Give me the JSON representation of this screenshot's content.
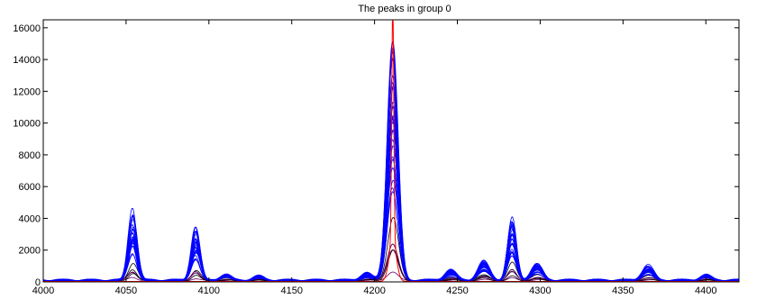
{
  "chart_data": {
    "type": "line",
    "title": "The peaks in group 0",
    "xlabel": "",
    "ylabel": "",
    "xlim": [
      4000,
      4420
    ],
    "ylim": [
      0,
      16500
    ],
    "xticks": [
      4000,
      4050,
      4100,
      4150,
      4200,
      4250,
      4300,
      4350,
      4400
    ],
    "yticks": [
      0,
      2000,
      4000,
      6000,
      8000,
      10000,
      12000,
      14000,
      16000
    ],
    "grid": false,
    "legend": "none",
    "colors": {
      "blue": "#0000ff",
      "red": "#ff0000",
      "black": "#000000",
      "purple": "#6a006a"
    },
    "peaks": [
      {
        "center": 4054,
        "height": 3700
      },
      {
        "center": 4092,
        "height": 3000
      },
      {
        "center": 4110,
        "height": 350
      },
      {
        "center": 4130,
        "height": 250
      },
      {
        "center": 4195,
        "height": 400
      },
      {
        "center": 4211,
        "height": 12600
      },
      {
        "center": 4246,
        "height": 600
      },
      {
        "center": 4266,
        "height": 1100
      },
      {
        "center": 4283,
        "height": 3300
      },
      {
        "center": 4298,
        "height": 1000
      },
      {
        "center": 4365,
        "height": 900
      },
      {
        "center": 4400,
        "height": 350
      }
    ],
    "series": [
      {
        "color": "#ff0000",
        "peak_x": 4211,
        "peak_y": 15100
      }
    ]
  }
}
